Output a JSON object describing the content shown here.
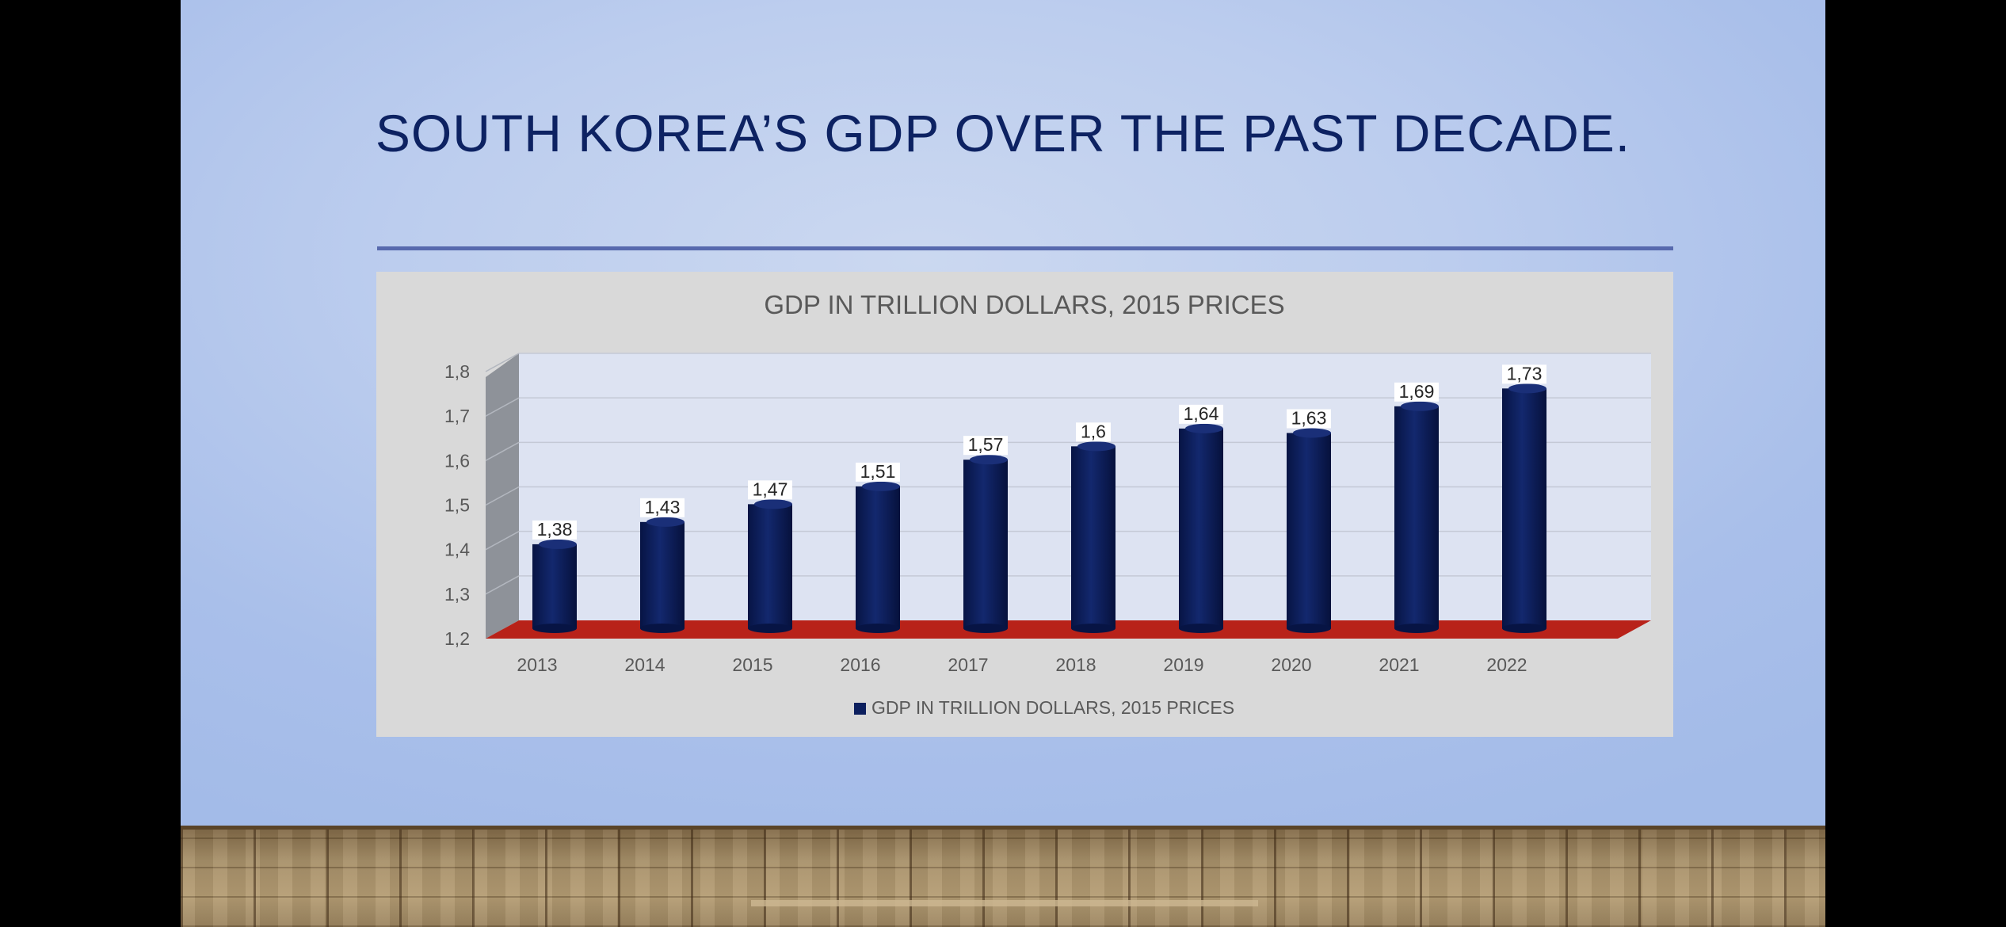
{
  "slide": {
    "title": "SOUTH KOREA’S GDP OVER THE PAST DECADE."
  },
  "colors": {
    "bar": "#0c1f5e",
    "floor": "#b82219",
    "plot_background": "#dde3f2",
    "side_wall": "#8e9299",
    "title_text": "#0d2262"
  },
  "chart_data": {
    "type": "bar",
    "title": "GDP IN TRILLION DOLLARS, 2015 PRICES",
    "categories": [
      "2013",
      "2014",
      "2015",
      "2016",
      "2017",
      "2018",
      "2019",
      "2020",
      "2021",
      "2022"
    ],
    "series": [
      {
        "name": "GDP IN TRILLION DOLLARS, 2015 PRICES",
        "values": [
          1.38,
          1.43,
          1.47,
          1.51,
          1.57,
          1.6,
          1.64,
          1.63,
          1.69,
          1.73
        ],
        "data_labels": [
          "1,38",
          "1,43",
          "1,47",
          "1,51",
          "1,57",
          "1,6",
          "1,64",
          "1,63",
          "1,69",
          "1,73"
        ]
      }
    ],
    "y_ticks": [
      {
        "value": 1.2,
        "label": "1,2"
      },
      {
        "value": 1.3,
        "label": "1,3"
      },
      {
        "value": 1.4,
        "label": "1,4"
      },
      {
        "value": 1.5,
        "label": "1,5"
      },
      {
        "value": 1.6,
        "label": "1,6"
      },
      {
        "value": 1.7,
        "label": "1,7"
      },
      {
        "value": 1.8,
        "label": "1,8"
      }
    ],
    "ylim": [
      1.2,
      1.8
    ],
    "grid": true,
    "legend": "bottom",
    "style": "3d-cylinder"
  }
}
